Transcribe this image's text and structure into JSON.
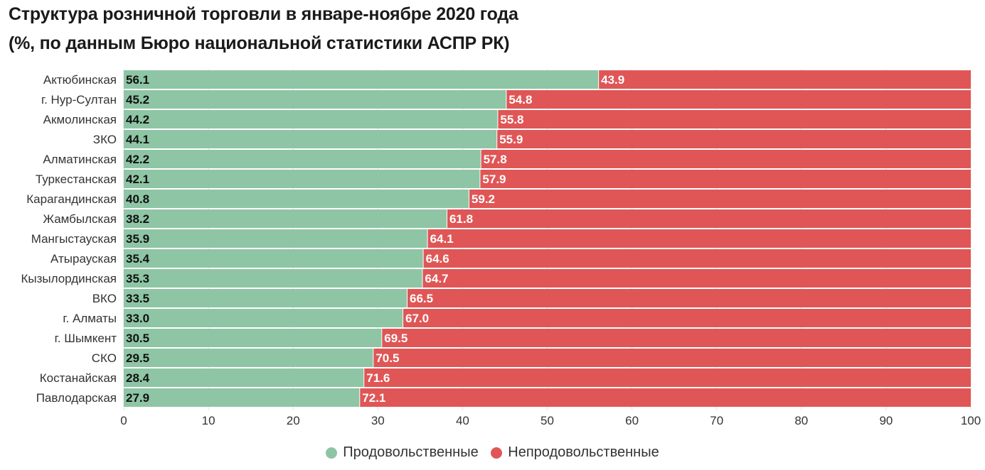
{
  "title_line1": "Структура розничной торговли в январе-ноябре 2020 года",
  "title_line2": "(%, по данным Бюро национальной статистики АСПР РК)",
  "colors": {
    "food": "#8ec5a5",
    "nonfood": "#e05656"
  },
  "chart_data": {
    "type": "bar",
    "orientation": "horizontal",
    "stacked": true,
    "categories": [
      "Актюбинская",
      "г. Нур-Султан",
      "Акмолинская",
      "ЗКО",
      "Алматинская",
      "Туркестанская",
      "Карагандинская",
      "Жамбылская",
      "Мангыстауская",
      "Атырауская",
      "Кызылординская",
      "ВКО",
      "г. Алматы",
      "г. Шымкент",
      "СКО",
      "Костанайская",
      "Павлодарская"
    ],
    "series": [
      {
        "name": "Продовольственные",
        "values": [
          "56.1",
          "45.2",
          "44.2",
          "44.1",
          "42.2",
          "42.1",
          "40.8",
          "38.2",
          "35.9",
          "35.4",
          "35.3",
          "33.5",
          "33.0",
          "30.5",
          "29.5",
          "28.4",
          "27.9"
        ]
      },
      {
        "name": "Непродовольственные",
        "values": [
          "43.9",
          "54.8",
          "55.8",
          "55.9",
          "57.8",
          "57.9",
          "59.2",
          "61.8",
          "64.1",
          "64.6",
          "64.7",
          "66.5",
          "67.0",
          "69.5",
          "70.5",
          "71.6",
          "72.1"
        ]
      }
    ],
    "xlim": [
      0,
      100
    ],
    "xticks": [
      "0",
      "10",
      "20",
      "30",
      "40",
      "50",
      "60",
      "70",
      "80",
      "90",
      "100"
    ],
    "grid": true,
    "legend_position": "bottom-center"
  }
}
